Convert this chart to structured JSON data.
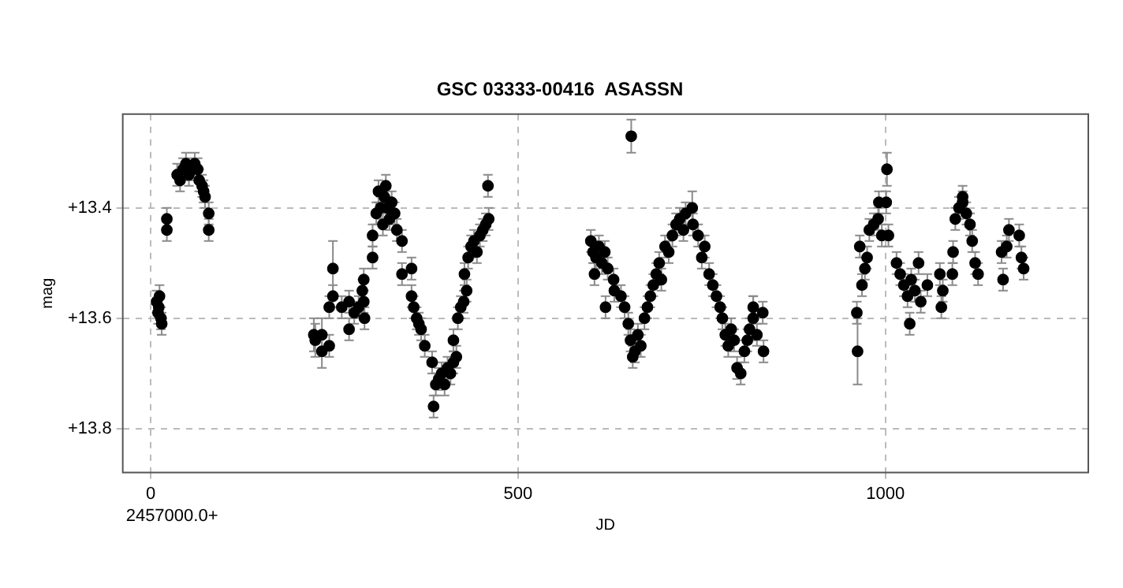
{
  "chart_data": {
    "type": "scatter",
    "title": "GSC 03333-00416  ASASSN",
    "xlabel": "JD",
    "ylabel": "mag",
    "annotations": [
      "2457000.0+"
    ],
    "xlim": [
      -38,
      1276
    ],
    "xticks": [
      0,
      500,
      1000
    ],
    "ylim": [
      13.88,
      13.23
    ],
    "yticks": [
      {
        "value": 13.4,
        "label": "+13.4"
      },
      {
        "value": 13.6,
        "label": "+13.6"
      },
      {
        "value": 13.8,
        "label": "+13.8"
      }
    ],
    "grid": true,
    "legend": false,
    "marker": "circle",
    "series": [
      {
        "color": "#000000",
        "x": [
          8,
          10,
          11,
          12,
          14,
          15,
          22,
          22,
          36,
          40,
          44,
          48,
          52,
          56,
          60,
          64,
          66,
          70,
          72,
          74,
          79,
          79,
          222,
          224,
          233,
          233,
          243,
          243,
          248,
          248,
          260,
          270,
          270,
          277,
          283,
          288,
          290,
          291,
          290,
          302,
          302,
          307,
          310,
          313,
          316,
          318,
          320,
          322,
          325,
          328,
          332,
          335,
          342,
          342,
          355,
          355,
          358,
          362,
          365,
          368,
          373,
          383,
          385,
          388,
          392,
          396,
          400,
          404,
          408,
          412,
          416,
          412,
          418,
          422,
          426,
          430,
          427,
          432,
          436,
          440,
          444,
          448,
          452,
          456,
          460,
          459,
          599,
          602,
          604,
          606,
          610,
          614,
          618,
          619,
          622,
          630,
          631,
          640,
          645,
          650,
          653,
          654,
          656,
          659,
          663,
          667,
          672,
          676,
          680,
          684,
          688,
          692,
          695,
          700,
          705,
          710,
          715,
          720,
          725,
          728,
          737,
          738,
          745,
          750,
          754,
          760,
          765,
          770,
          775,
          778,
          782,
          786,
          790,
          794,
          798,
          803,
          808,
          812,
          815,
          820,
          820,
          825,
          833,
          834,
          961,
          962,
          965,
          968,
          972,
          975,
          978,
          984,
          990,
          991,
          995,
          1001,
          1002,
          1004,
          1015,
          1020,
          1025,
          1030,
          1033,
          1035,
          1040,
          1045,
          1048,
          1057,
          1074,
          1076,
          1078,
          1091,
          1092,
          1095,
          1100,
          1105,
          1105,
          1110,
          1115,
          1118,
          1122,
          1126,
          1158,
          1160,
          1165,
          1168,
          1182,
          1185,
          1188
        ],
        "values": [
          13.57,
          13.59,
          13.58,
          13.56,
          13.6,
          13.61,
          13.42,
          13.44,
          13.34,
          13.35,
          13.33,
          13.32,
          13.34,
          13.33,
          13.32,
          13.33,
          13.35,
          13.36,
          13.37,
          13.38,
          13.41,
          13.44,
          13.63,
          13.64,
          13.63,
          13.66,
          13.65,
          13.58,
          13.51,
          13.56,
          13.58,
          13.57,
          13.62,
          13.59,
          13.58,
          13.55,
          13.57,
          13.6,
          13.53,
          13.45,
          13.49,
          13.41,
          13.37,
          13.4,
          13.43,
          13.38,
          13.36,
          13.4,
          13.42,
          13.39,
          13.41,
          13.44,
          13.46,
          13.52,
          13.51,
          13.56,
          13.58,
          13.6,
          13.61,
          13.62,
          13.65,
          13.68,
          13.76,
          13.72,
          13.71,
          13.7,
          13.72,
          13.69,
          13.7,
          13.68,
          13.67,
          13.64,
          13.6,
          13.58,
          13.57,
          13.55,
          13.52,
          13.49,
          13.47,
          13.46,
          13.48,
          13.45,
          13.44,
          13.43,
          13.42,
          13.36,
          13.46,
          13.48,
          13.52,
          13.49,
          13.47,
          13.5,
          13.48,
          13.58,
          13.51,
          13.53,
          13.55,
          13.56,
          13.58,
          13.61,
          13.64,
          13.27,
          13.67,
          13.66,
          13.63,
          13.65,
          13.6,
          13.58,
          13.56,
          13.54,
          13.52,
          13.5,
          13.53,
          13.47,
          13.48,
          13.45,
          13.43,
          13.42,
          13.44,
          13.41,
          13.4,
          13.43,
          13.45,
          13.49,
          13.47,
          13.52,
          13.54,
          13.56,
          13.58,
          13.6,
          13.63,
          13.65,
          13.62,
          13.64,
          13.69,
          13.7,
          13.66,
          13.64,
          13.62,
          13.6,
          13.58,
          13.63,
          13.59,
          13.66,
          13.59,
          13.66,
          13.47,
          13.54,
          13.51,
          13.49,
          13.44,
          13.43,
          13.42,
          13.39,
          13.45,
          13.39,
          13.33,
          13.45,
          13.5,
          13.52,
          13.54,
          13.56,
          13.61,
          13.53,
          13.55,
          13.5,
          13.57,
          13.54,
          13.52,
          13.58,
          13.55,
          13.52,
          13.48,
          13.42,
          13.4,
          13.39,
          13.38,
          13.41,
          13.43,
          13.46,
          13.5,
          13.52,
          13.48,
          13.53,
          13.47,
          13.44,
          13.45,
          13.49,
          13.51
        ],
        "errors": [
          0.02,
          0.02,
          0.02,
          0.02,
          0.02,
          0.02,
          0.02,
          0.02,
          0.02,
          0.02,
          0.02,
          0.02,
          0.02,
          0.02,
          0.02,
          0.02,
          0.02,
          0.02,
          0.02,
          0.02,
          0.02,
          0.02,
          0.03,
          0.03,
          0.03,
          0.03,
          0.02,
          0.02,
          0.05,
          0.02,
          0.02,
          0.02,
          0.02,
          0.02,
          0.02,
          0.02,
          0.02,
          0.02,
          0.02,
          0.02,
          0.02,
          0.02,
          0.02,
          0.02,
          0.02,
          0.02,
          0.02,
          0.02,
          0.02,
          0.02,
          0.02,
          0.02,
          0.02,
          0.02,
          0.02,
          0.02,
          0.02,
          0.02,
          0.02,
          0.02,
          0.02,
          0.02,
          0.02,
          0.02,
          0.02,
          0.02,
          0.02,
          0.02,
          0.02,
          0.02,
          0.02,
          0.02,
          0.02,
          0.02,
          0.02,
          0.02,
          0.02,
          0.02,
          0.02,
          0.02,
          0.02,
          0.02,
          0.02,
          0.02,
          0.02,
          0.02,
          0.02,
          0.02,
          0.02,
          0.02,
          0.02,
          0.02,
          0.02,
          0.02,
          0.02,
          0.02,
          0.02,
          0.02,
          0.02,
          0.02,
          0.02,
          0.03,
          0.02,
          0.02,
          0.02,
          0.02,
          0.02,
          0.02,
          0.02,
          0.02,
          0.02,
          0.02,
          0.02,
          0.02,
          0.02,
          0.02,
          0.02,
          0.02,
          0.02,
          0.02,
          0.03,
          0.02,
          0.02,
          0.02,
          0.02,
          0.02,
          0.02,
          0.02,
          0.02,
          0.02,
          0.02,
          0.02,
          0.02,
          0.02,
          0.02,
          0.02,
          0.02,
          0.02,
          0.02,
          0.04,
          0.02,
          0.02,
          0.02,
          0.02,
          0.02,
          0.06,
          0.02,
          0.02,
          0.02,
          0.02,
          0.02,
          0.02,
          0.02,
          0.02,
          0.02,
          0.02,
          0.03,
          0.02,
          0.02,
          0.02,
          0.02,
          0.02,
          0.02,
          0.02,
          0.02,
          0.02,
          0.02,
          0.02,
          0.02,
          0.02,
          0.02,
          0.02,
          0.02,
          0.02,
          0.02,
          0.02,
          0.02,
          0.02,
          0.02,
          0.02,
          0.02,
          0.02,
          0.02,
          0.02,
          0.02,
          0.02,
          0.02,
          0.02,
          0.02
        ]
      }
    ]
  }
}
